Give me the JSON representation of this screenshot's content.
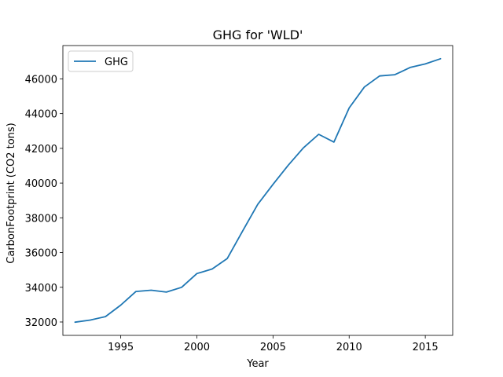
{
  "chart_data": {
    "type": "line",
    "title": "GHG for 'WLD'",
    "xlabel": "Year",
    "ylabel": "CarbonFootprint (CO2 tons)",
    "x": [
      1992,
      1993,
      1994,
      1995,
      1996,
      1997,
      1998,
      1999,
      2000,
      2001,
      2002,
      2003,
      2004,
      2005,
      2006,
      2007,
      2008,
      2009,
      2010,
      2011,
      2012,
      2013,
      2014,
      2015,
      2016
    ],
    "series": [
      {
        "name": "GHG",
        "color": "#1f77b4",
        "values": [
          31990,
          32110,
          32310,
          32970,
          33760,
          33830,
          33720,
          34000,
          34790,
          35050,
          35660,
          37230,
          38780,
          39930,
          41030,
          42030,
          42810,
          42360,
          44330,
          45530,
          46170,
          46240,
          46660,
          46860,
          47160
        ]
      }
    ],
    "xlim": [
      1991.2,
      2016.8
    ],
    "ylim": [
      31230,
      47920
    ],
    "xticks": [
      "1995",
      "2000",
      "2005",
      "2010",
      "2015"
    ],
    "yticks": [
      "32000",
      "34000",
      "36000",
      "38000",
      "40000",
      "42000",
      "44000",
      "46000"
    ],
    "legend": {
      "placement": "top-left",
      "entries": [
        "GHG"
      ]
    },
    "grid": false
  }
}
